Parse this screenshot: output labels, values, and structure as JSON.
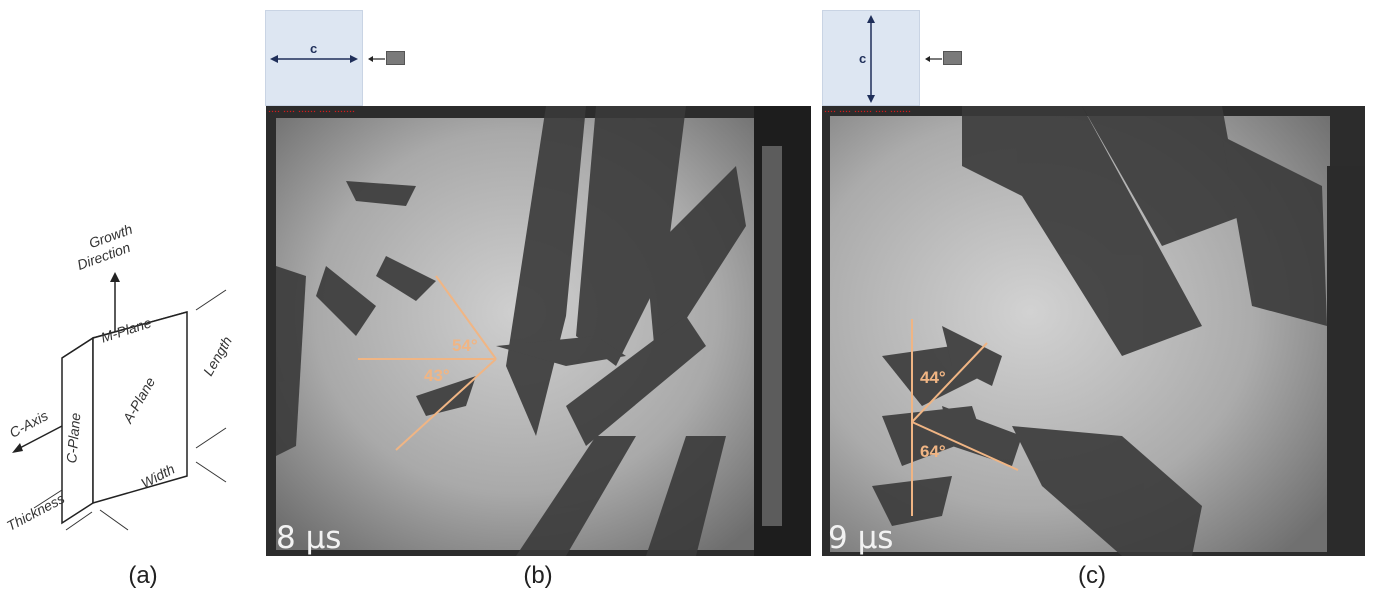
{
  "panels": [
    {
      "id": "a",
      "label": "(a)"
    },
    {
      "id": "b",
      "label": "(b)",
      "time": "8 µs",
      "orientation_axis": "c",
      "angles": [
        "54°",
        "43°"
      ]
    },
    {
      "id": "c",
      "label": "(c)",
      "time": "9 µs",
      "orientation_axis": "c",
      "angles": [
        "44°",
        "64°"
      ]
    }
  ],
  "crystal_diagram": {
    "growth_direction": [
      "Growth",
      "Direction"
    ],
    "faces": {
      "top": "M-Plane",
      "front": "A-Plane",
      "side": "C-Plane"
    },
    "dimensions": {
      "length": "Length",
      "width": "Width",
      "thickness": "Thickness"
    },
    "axis": "C-Axis"
  },
  "colors": {
    "angle_overlay": "#f0b584",
    "orientation_box": "#dde6f2",
    "arrow": "#1f2f5a"
  }
}
